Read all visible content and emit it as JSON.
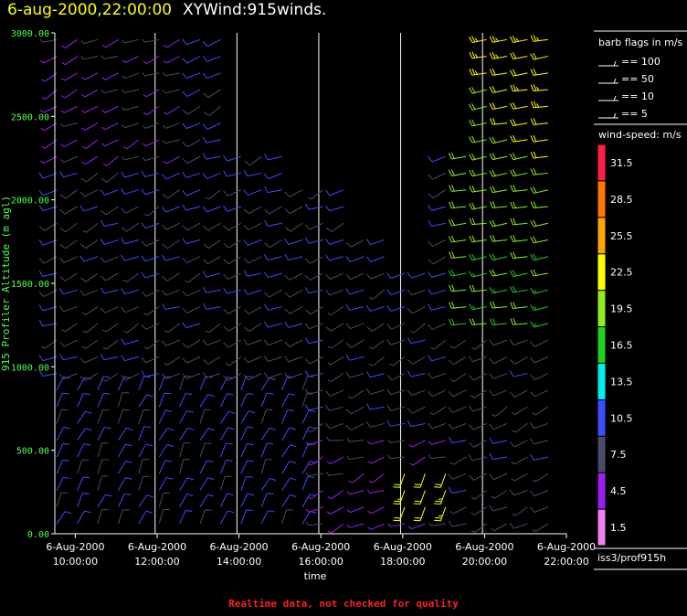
{
  "header": {
    "datetime": "6-aug-2000,22:00:00",
    "title": "XYWind:915winds."
  },
  "warning": "Realtime data, not checked for quality",
  "chart_data": {
    "type": "wind-barb time-height",
    "ylabel": "915 Profiler Altitude (m agl)",
    "xlabel": "time",
    "ylim": [
      0,
      3000
    ],
    "yticks": [
      "0.00",
      "500.00",
      "1000.00",
      "1500.00",
      "2000.00",
      "2500.00",
      "3000.00"
    ],
    "xlim_hours": [
      9.5,
      22.0
    ],
    "xticks": [
      {
        "hour": 10,
        "date": "6-Aug-2000",
        "time": "10:00:00"
      },
      {
        "hour": 12,
        "date": "6-Aug-2000",
        "time": "12:00:00"
      },
      {
        "hour": 14,
        "date": "6-Aug-2000",
        "time": "14:00:00"
      },
      {
        "hour": 16,
        "date": "6-Aug-2000",
        "time": "16:00:00"
      },
      {
        "hour": 18,
        "date": "6-Aug-2000",
        "time": "18:00:00"
      },
      {
        "hour": 20,
        "date": "6-Aug-2000",
        "time": "20:00:00"
      },
      {
        "hour": 22,
        "date": "6-Aug-2000",
        "time": "22:00:00"
      }
    ],
    "vertical_lines_hours": [
      11.95,
      13.95,
      15.95,
      17.95,
      19.95
    ],
    "legend": {
      "title": "barb flags in m/s",
      "flags": [
        "== 100",
        "== 50",
        "== 10",
        "== 5"
      ],
      "colorbar_title": "wind-speed: m/s",
      "colorbar": [
        {
          "label": "1.5",
          "color": "#ee82ee"
        },
        {
          "label": "4.5",
          "color": "#9a1fee"
        },
        {
          "label": "7.5",
          "color": "#4a4a6a"
        },
        {
          "label": "10.5",
          "color": "#3c4cff"
        },
        {
          "label": "13.5",
          "color": "#00f0f0"
        },
        {
          "label": "16.5",
          "color": "#20d020"
        },
        {
          "label": "19.5",
          "color": "#90ee20"
        },
        {
          "label": "22.5",
          "color": "#ffff00"
        },
        {
          "label": "25.5",
          "color": "#ffa500"
        },
        {
          "label": "28.5",
          "color": "#ff7800"
        },
        {
          "label": "31.5",
          "color": "#ff1e46"
        }
      ],
      "station": "iss3/prof915h"
    }
  }
}
